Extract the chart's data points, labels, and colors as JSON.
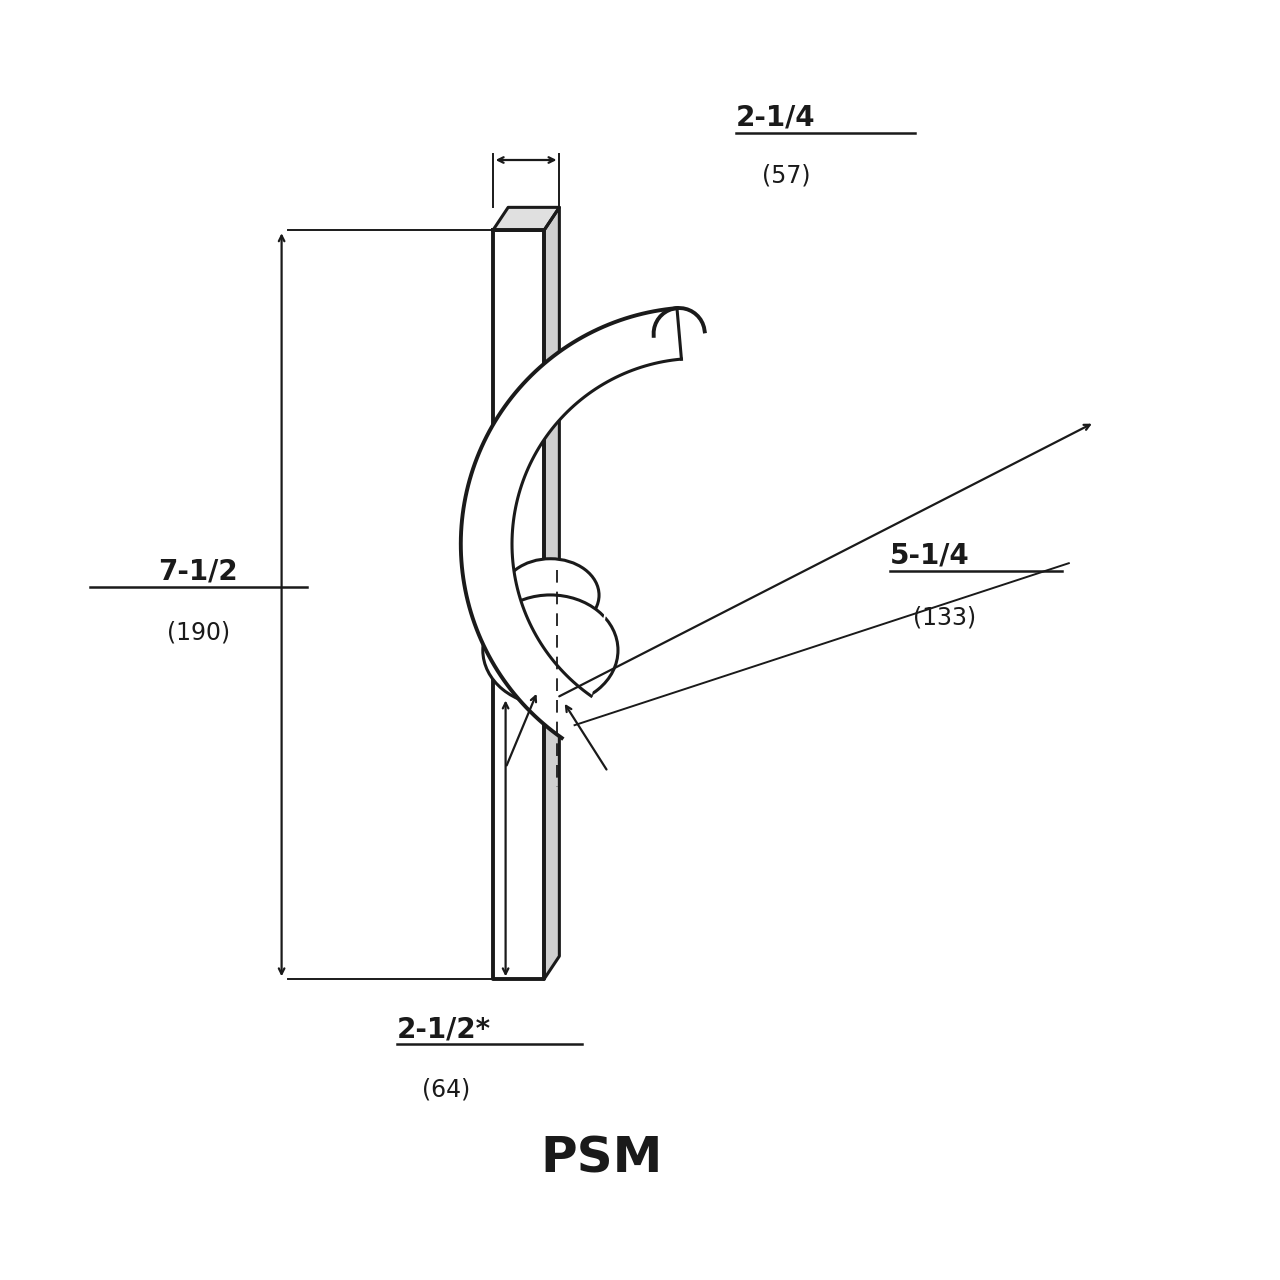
{
  "bg_color": "#ffffff",
  "line_color": "#1a1a1a",
  "dim_color": "#1a1a1a",
  "title": "PSM",
  "title_fontsize": 36,
  "title_fontweight": "bold",
  "dim_fontsize": 20,
  "annotations": {
    "top_dim_label1": "2-1/4",
    "top_dim_label2": "(57)",
    "left_dim_label1": "7-1/2",
    "left_dim_label2": "(190)",
    "right_dim_label1": "5-1/4",
    "right_dim_label2": "(133)",
    "bottom_dim_label1": "2-1/2*",
    "bottom_dim_label2": "(64)"
  }
}
